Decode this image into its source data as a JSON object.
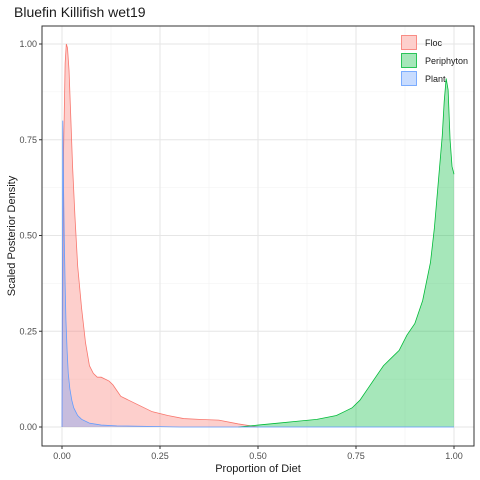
{
  "chart_data": {
    "type": "area",
    "title": "Bluefin Killifish wet19",
    "xlabel": "Proportion of Diet",
    "ylabel": "Scaled Posterior Density",
    "xlim": [
      0,
      1
    ],
    "ylim": [
      0,
      1
    ],
    "x_ticks": [
      0,
      0.25,
      0.5,
      0.75,
      1
    ],
    "x_tick_labels": [
      "0.00",
      "0.25",
      "0.50",
      "0.75",
      "1.00"
    ],
    "y_ticks": [
      0,
      0.25,
      0.5,
      0.75,
      1
    ],
    "y_tick_labels": [
      "0.00",
      "0.25",
      "0.50",
      "0.75",
      "1.00"
    ],
    "grid": true,
    "legend_position": "top-right",
    "series": [
      {
        "name": "Floc",
        "fill": "#F8766D",
        "line": "#F8766D",
        "x": [
          0.0,
          0.004,
          0.008,
          0.011,
          0.014,
          0.018,
          0.022,
          0.027,
          0.033,
          0.04,
          0.05,
          0.06,
          0.07,
          0.08,
          0.09,
          0.1,
          0.11,
          0.12,
          0.13,
          0.14,
          0.15,
          0.17,
          0.2,
          0.23,
          0.27,
          0.31,
          0.35,
          0.4,
          0.45,
          0.5
        ],
        "y": [
          0.0,
          0.72,
          0.95,
          1.0,
          0.99,
          0.93,
          0.82,
          0.68,
          0.55,
          0.42,
          0.31,
          0.22,
          0.16,
          0.14,
          0.13,
          0.13,
          0.125,
          0.12,
          0.11,
          0.095,
          0.08,
          0.07,
          0.055,
          0.04,
          0.03,
          0.022,
          0.02,
          0.018,
          0.008,
          0.0
        ]
      },
      {
        "name": "Periphyton",
        "fill": "#00BA38",
        "line": "#00BA38",
        "x": [
          0.45,
          0.5,
          0.55,
          0.6,
          0.65,
          0.7,
          0.72,
          0.74,
          0.76,
          0.78,
          0.8,
          0.82,
          0.84,
          0.86,
          0.88,
          0.9,
          0.92,
          0.94,
          0.95,
          0.96,
          0.97,
          0.975,
          0.98,
          0.985,
          0.99,
          0.995,
          1.0
        ],
        "y": [
          0.0,
          0.005,
          0.01,
          0.015,
          0.02,
          0.03,
          0.04,
          0.05,
          0.07,
          0.1,
          0.13,
          0.16,
          0.18,
          0.2,
          0.24,
          0.27,
          0.33,
          0.43,
          0.52,
          0.64,
          0.76,
          0.85,
          0.91,
          0.88,
          0.75,
          0.68,
          0.66
        ]
      },
      {
        "name": "Plant",
        "fill": "#619CFF",
        "line": "#619CFF",
        "x": [
          0.0,
          0.002,
          0.004,
          0.006,
          0.008,
          0.01,
          0.013,
          0.016,
          0.02,
          0.025,
          0.03,
          0.04,
          0.05,
          0.07,
          0.1,
          0.14,
          0.2,
          0.3,
          0.5,
          1.0
        ],
        "y": [
          0.0,
          0.8,
          0.62,
          0.48,
          0.37,
          0.28,
          0.2,
          0.14,
          0.1,
          0.07,
          0.05,
          0.03,
          0.02,
          0.01,
          0.005,
          0.003,
          0.002,
          0.0,
          0.0,
          0.0
        ]
      }
    ]
  }
}
